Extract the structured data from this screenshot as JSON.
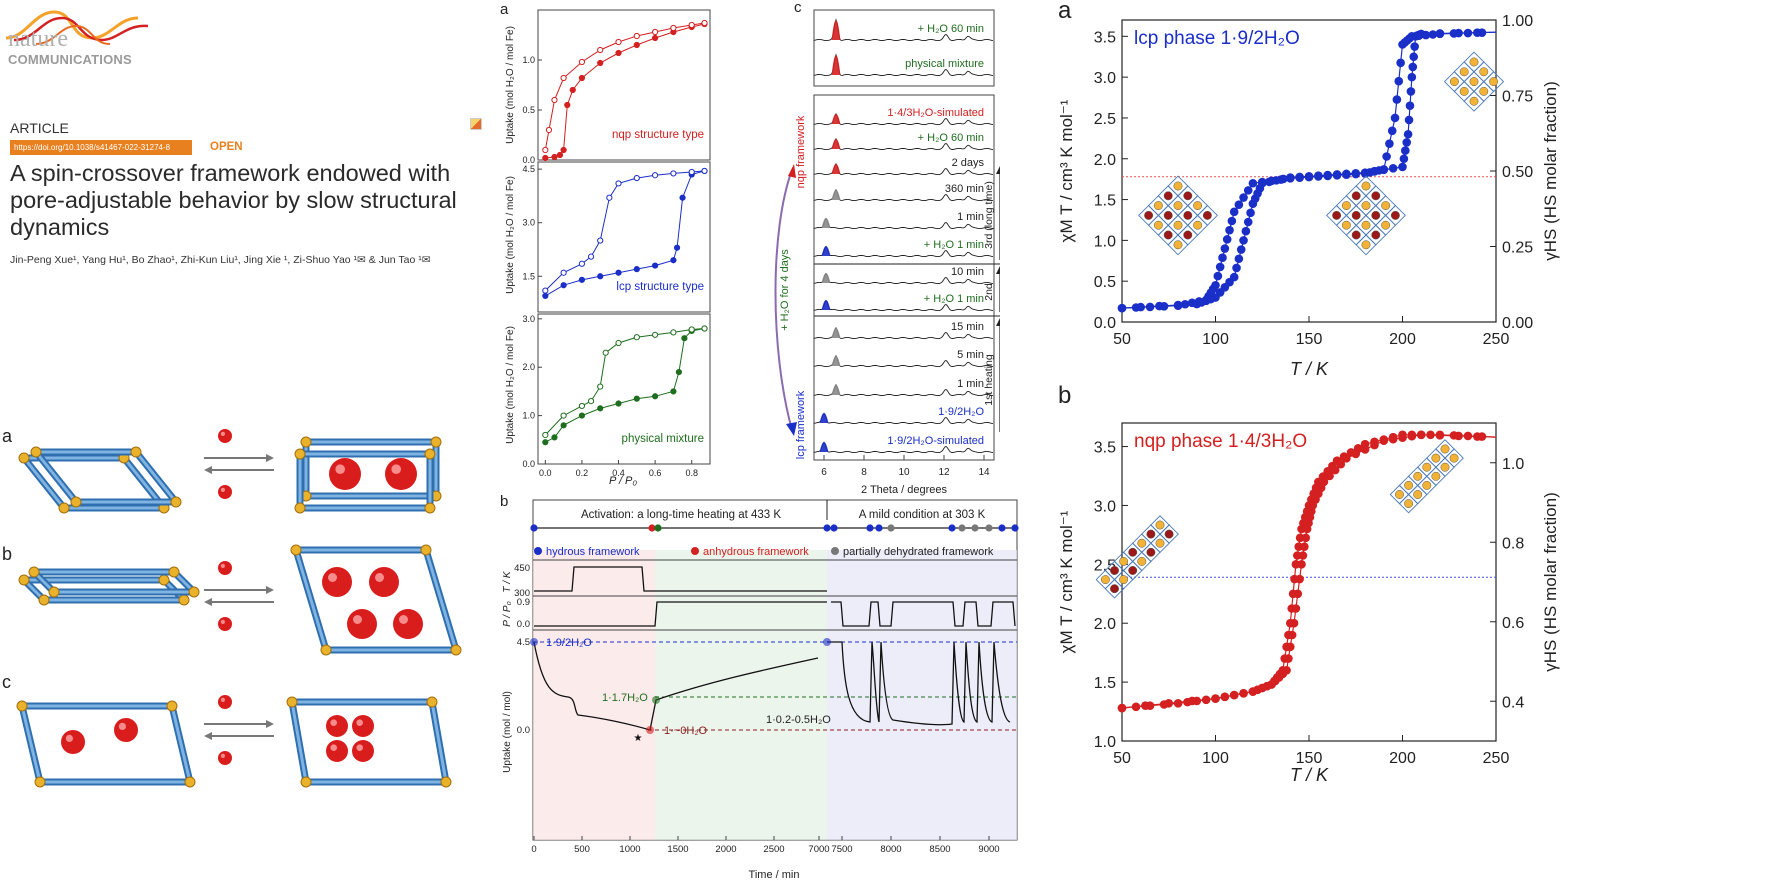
{
  "header": {
    "journal_line1": "nature",
    "journal_line2": "COMMUNICATIONS",
    "article_type": "ARTICLE",
    "doi": "https://doi.org/10.1038/s41467-022-31274-8",
    "open_label": "OPEN",
    "title": "A spin-crossover framework endowed with pore-adjustable behavior by slow structural dynamics",
    "authors": "Jin-Peng Xue¹, Yang Hu¹, Bo Zhao¹, Zhi-Kun Liu¹, Jing Xie ¹, Zi-Shuo Yao ¹✉ & Jun Tao ¹✉"
  },
  "schematic": {
    "labels": [
      "a",
      "b",
      "c"
    ]
  },
  "colors": {
    "red": "#d42020",
    "blue": "#1a2ec8",
    "green": "#1f6e1f",
    "gray": "#777777"
  },
  "fig_a": {
    "panel_label": "a",
    "ylabel": "Uptake (mol H₂O / mol Fe)",
    "xlabel": "P / P₀",
    "x_ticks": [
      "0.0",
      "0.2",
      "0.4",
      "0.6",
      "0.8"
    ],
    "panels": [
      {
        "label": "nqp structure type",
        "y_ticks": [
          "0.0",
          "0.5",
          "1.0"
        ]
      },
      {
        "label": "lcp structure type",
        "y_ticks": [
          "1.5",
          "3.0",
          "4.5"
        ]
      },
      {
        "label": "physical mixture",
        "y_ticks": [
          "0.0",
          "1.0",
          "2.0",
          "3.0"
        ]
      }
    ]
  },
  "fig_b": {
    "panel_label": "b",
    "phase1": "Activation: a long-time heating at 433 K",
    "phase2": "A mild condition at 303 K",
    "legend": [
      "hydrous framework",
      "anhydrous framework",
      "partially dehydrated framework"
    ],
    "t_label": "T / K",
    "t_ticks": [
      "450",
      "300"
    ],
    "p_label": "P / P₀",
    "p_ticks": [
      "0.9",
      "0.0"
    ],
    "u_label": "Uptake (mol / mol)",
    "u_ticks": [
      "4.5",
      "0.0"
    ],
    "annotations": [
      "1·9/2H₂O",
      "1·1.7H₂O",
      "1·~0H₂O",
      "1·0.2-0.5H₂O"
    ],
    "xlabel": "Time / min",
    "x_ticks": [
      "0",
      "500",
      "1000",
      "1500",
      "2000",
      "2500",
      "7000",
      "7500",
      "8000",
      "8500",
      "9000"
    ]
  },
  "fig_c": {
    "panel_label": "c",
    "top_labels": [
      "+ H₂O 60 min",
      "physical mixture"
    ],
    "labels": [
      "1·4/3H₂O-simulated",
      "+ H₂O 60 min",
      "2 days",
      "360 min",
      "1 min",
      "+ H₂O 1 min",
      "10 min",
      "+ H₂O 1 min",
      "15 min",
      "5 min",
      "1 min",
      "1·9/2H₂O",
      "1·9/2H₂O-simulated"
    ],
    "side_labels": [
      "3rd (long time)",
      "2nd",
      "1st heating"
    ],
    "nqp_label": "nqp framework",
    "lcp_label": "lcp framework",
    "middle_label": "+ H₂O for 4 days",
    "xlabel": "2 Theta / degrees",
    "x_ticks": [
      "6",
      "8",
      "10",
      "12",
      "14"
    ]
  },
  "magnet_a": {
    "panel_label": "a",
    "legend": "lcp phase 1·9/2H₂O",
    "ylabel": "χM T / cm³ K mol⁻¹",
    "y2label": "γHS (HS molar fraction)",
    "xlabel": "T / K",
    "x_ticks": [
      "50",
      "100",
      "150",
      "200",
      "250"
    ],
    "y_ticks": [
      "0.0",
      "0.5",
      "1.0",
      "1.5",
      "2.0",
      "2.5",
      "3.0",
      "3.5"
    ],
    "y2_ticks": [
      "0.00",
      "0.25",
      "0.50",
      "0.75",
      "1.00"
    ]
  },
  "magnet_b": {
    "panel_label": "b",
    "legend": "nqp phase 1·4/3H₂O",
    "ylabel": "χM T / cm³ K mol⁻¹",
    "y2label": "γHS (HS molar fraction)",
    "xlabel": "T / K",
    "x_ticks": [
      "50",
      "100",
      "150",
      "200",
      "250"
    ],
    "y_ticks": [
      "1.0",
      "1.5",
      "2.0",
      "2.5",
      "3.0",
      "3.5"
    ],
    "y2_ticks": [
      "0.4",
      "0.6",
      "0.8",
      "1.0"
    ]
  },
  "chart_data": [
    {
      "type": "scatter",
      "title": "nqp structure type",
      "xlabel": "P / P₀",
      "ylabel": "Uptake (mol H₂O / mol Fe)",
      "xlim": [
        -0.04,
        0.9
      ],
      "ylim": [
        0,
        1.5
      ],
      "series": [
        {
          "name": "adsorption",
          "x": [
            0.0,
            0.05,
            0.08,
            0.1,
            0.12,
            0.15,
            0.2,
            0.3,
            0.4,
            0.5,
            0.6,
            0.7,
            0.8,
            0.87
          ],
          "y": [
            0.02,
            0.03,
            0.05,
            0.1,
            0.55,
            0.7,
            0.82,
            0.97,
            1.07,
            1.15,
            1.22,
            1.28,
            1.33,
            1.36
          ]
        },
        {
          "name": "desorption",
          "x": [
            0.87,
            0.8,
            0.7,
            0.6,
            0.5,
            0.4,
            0.3,
            0.2,
            0.1,
            0.05,
            0.02,
            0.0
          ],
          "y": [
            1.37,
            1.35,
            1.32,
            1.28,
            1.24,
            1.18,
            1.1,
            0.98,
            0.82,
            0.6,
            0.3,
            0.1
          ]
        }
      ]
    },
    {
      "type": "scatter",
      "title": "lcp structure type",
      "xlabel": "P / P₀",
      "ylabel": "Uptake (mol H₂O / mol Fe)",
      "xlim": [
        -0.04,
        0.9
      ],
      "ylim": [
        0.5,
        4.7
      ],
      "series": [
        {
          "name": "adsorption",
          "x": [
            0.0,
            0.1,
            0.2,
            0.3,
            0.4,
            0.5,
            0.6,
            0.7,
            0.72,
            0.75,
            0.8,
            0.87
          ],
          "y": [
            0.95,
            1.25,
            1.4,
            1.5,
            1.6,
            1.7,
            1.8,
            1.95,
            2.3,
            3.7,
            4.35,
            4.45
          ]
        },
        {
          "name": "desorption",
          "x": [
            0.87,
            0.8,
            0.7,
            0.6,
            0.5,
            0.4,
            0.35,
            0.3,
            0.25,
            0.2,
            0.1,
            0.0
          ],
          "y": [
            4.45,
            4.42,
            4.38,
            4.33,
            4.25,
            4.1,
            3.7,
            2.5,
            2.05,
            1.85,
            1.6,
            1.1
          ]
        }
      ]
    },
    {
      "type": "scatter",
      "title": "physical mixture",
      "xlabel": "P / P₀",
      "ylabel": "Uptake (mol H₂O / mol Fe)",
      "xlim": [
        -0.04,
        0.9
      ],
      "ylim": [
        0,
        3.1
      ],
      "series": [
        {
          "name": "adsorption",
          "x": [
            0.0,
            0.05,
            0.1,
            0.2,
            0.3,
            0.4,
            0.5,
            0.6,
            0.7,
            0.73,
            0.76,
            0.8,
            0.87
          ],
          "y": [
            0.45,
            0.55,
            0.8,
            1.0,
            1.15,
            1.25,
            1.35,
            1.4,
            1.5,
            1.9,
            2.6,
            2.75,
            2.8
          ]
        },
        {
          "name": "desorption",
          "x": [
            0.87,
            0.8,
            0.7,
            0.6,
            0.5,
            0.4,
            0.33,
            0.3,
            0.25,
            0.2,
            0.1,
            0.0
          ],
          "y": [
            2.8,
            2.78,
            2.72,
            2.67,
            2.62,
            2.5,
            2.3,
            1.6,
            1.3,
            1.2,
            1.0,
            0.6
          ]
        }
      ]
    },
    {
      "type": "line",
      "title": "lcp phase 1·9/2H₂O",
      "xlabel": "T / K",
      "ylabel": "χM T / cm³ K mol⁻¹",
      "xlim": [
        50,
        250
      ],
      "ylim": [
        0,
        3.7
      ],
      "series": [
        {
          "name": "cooling",
          "x": [
            50,
            80,
            95,
            100,
            105,
            110,
            120,
            140,
            160,
            180,
            190,
            196,
            200,
            205,
            220,
            250
          ],
          "y": [
            0.17,
            0.2,
            0.27,
            0.45,
            0.9,
            1.35,
            1.7,
            1.76,
            1.79,
            1.82,
            1.87,
            2.5,
            3.4,
            3.5,
            3.53,
            3.55
          ]
        },
        {
          "name": "heating",
          "x": [
            50,
            90,
            100,
            110,
            115,
            120,
            125,
            140,
            160,
            180,
            200,
            203,
            205,
            207,
            210,
            250
          ],
          "y": [
            0.17,
            0.22,
            0.3,
            0.55,
            1.0,
            1.45,
            1.7,
            1.77,
            1.8,
            1.83,
            1.9,
            2.3,
            3.0,
            3.5,
            3.53,
            3.55
          ]
        }
      ]
    },
    {
      "type": "line",
      "title": "nqp phase 1·4/3H₂O",
      "xlabel": "T / K",
      "ylabel": "χM T / cm³ K mol⁻¹",
      "xlim": [
        50,
        250
      ],
      "ylim": [
        1.0,
        3.7
      ],
      "series": [
        {
          "name": "cooling",
          "x": [
            50,
            80,
            100,
            120,
            130,
            136,
            140,
            143,
            146,
            150,
            155,
            165,
            180,
            200,
            220,
            250
          ],
          "y": [
            1.28,
            1.32,
            1.36,
            1.42,
            1.48,
            1.6,
            2.0,
            2.5,
            2.8,
            3.0,
            3.2,
            3.38,
            3.52,
            3.6,
            3.6,
            3.58
          ]
        },
        {
          "name": "heating",
          "x": [
            50,
            100,
            120,
            130,
            138,
            142,
            146,
            149,
            152,
            158,
            170,
            190,
            210,
            250
          ],
          "y": [
            1.28,
            1.36,
            1.42,
            1.48,
            1.6,
            2.0,
            2.5,
            2.8,
            3.0,
            3.2,
            3.4,
            3.55,
            3.6,
            3.58
          ]
        }
      ]
    }
  ]
}
